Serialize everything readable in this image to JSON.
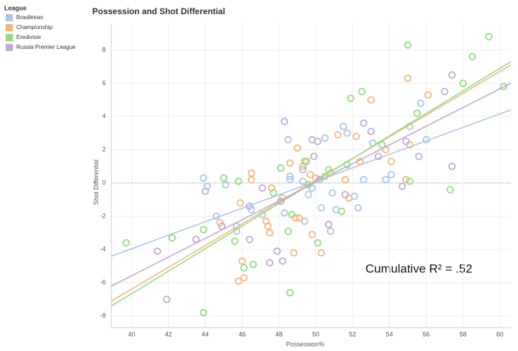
{
  "chart_data": {
    "type": "scatter",
    "title": "Possession and Shot Differential",
    "x_label": "Possession%",
    "y_label": "Shot Differential",
    "legend_title": "League",
    "legend_position": "left",
    "annotation": "Cumulative R² = .52",
    "xlim": [
      38.9,
      60.6
    ],
    "ylim": [
      -8.7,
      9.6
    ],
    "xticks": [
      40,
      42,
      44,
      46,
      48,
      50,
      52,
      54,
      56,
      58,
      60
    ],
    "yticks": [
      -8,
      -6,
      -4,
      -2,
      0,
      2,
      4,
      6,
      8
    ],
    "grid": true,
    "zero_line": true,
    "series": [
      {
        "name": "Brasileirao",
        "color": "#a9c6e8",
        "x": [
          43.9,
          44.1,
          45.1,
          44.6,
          45.7,
          45.7,
          46.5,
          47.1,
          48.3,
          48.5,
          48.6,
          49.3,
          49.6,
          49.8,
          50.3,
          50.5,
          50.9,
          51.1,
          51.5,
          51.7,
          52.1,
          52.3,
          52.6,
          53.1,
          53.8,
          54.1,
          55.1,
          55.7,
          56.0,
          50.8,
          49.4,
          48.6
        ],
        "values": [
          0.3,
          -0.2,
          -0.1,
          -2.0,
          -2.6,
          -2.9,
          -1.6,
          -1.9,
          -1.8,
          2.6,
          0.4,
          0.1,
          -0.7,
          -0.3,
          -1.5,
          2.7,
          -0.6,
          -1.6,
          3.4,
          3.0,
          -0.8,
          -1.5,
          0.2,
          2.4,
          0.2,
          0.5,
          3.4,
          4.8,
          2.6,
          -2.9,
          -2.3,
          0.2
        ],
        "trend": {
          "x": [
            38.9,
            60.6
          ],
          "y": [
            -4.4,
            4.4
          ]
        }
      },
      {
        "name": "Championship",
        "color": "#f7b679",
        "x": [
          44.8,
          45.9,
          46.0,
          46.1,
          45.8,
          46.5,
          46.5,
          47.3,
          47.5,
          47.4,
          47.6,
          48.2,
          48.6,
          48.8,
          49.0,
          49.1,
          48.9,
          49.5,
          49.7,
          49.8,
          50.0,
          50.3,
          50.8,
          50.7,
          51.2,
          51.6,
          52.2,
          53.0,
          53.8,
          54.1,
          55.0,
          54.9,
          55.1,
          56.1,
          52.4,
          49.3,
          51.8
        ],
        "values": [
          -2.4,
          -1.2,
          -4.7,
          -5.7,
          -5.9,
          0.6,
          0.2,
          -2.3,
          -3.0,
          -2.6,
          -0.3,
          -0.9,
          1.2,
          -4.2,
          2.1,
          -2.1,
          -2.1,
          1.3,
          0.5,
          -3.1,
          0.3,
          -4.2,
          0.6,
          -2.5,
          2.9,
          0.2,
          2.8,
          5.0,
          2.0,
          1.3,
          6.3,
          0.2,
          2.3,
          5.3,
          1.3,
          1.0,
          -0.9
        ],
        "trend": {
          "x": [
            38.9,
            60.6
          ],
          "y": [
            -7.1,
            7.1
          ]
        }
      },
      {
        "name": "Eredivisie",
        "color": "#8fdc7f",
        "x": [
          39.7,
          42.2,
          43.9,
          43.9,
          45.0,
          45.6,
          45.8,
          46.1,
          46.6,
          47.7,
          48.1,
          48.5,
          48.7,
          48.6,
          49.6,
          49.4,
          50.1,
          50.5,
          51.4,
          51.7,
          51.9,
          52.5,
          53.6,
          55.0,
          55.5,
          57.3,
          58.0,
          58.5,
          59.4,
          60.2,
          55.1,
          50.7
        ],
        "values": [
          -3.6,
          -3.3,
          -2.8,
          -7.8,
          0.3,
          -3.5,
          0.1,
          -5.1,
          -4.9,
          -0.6,
          0.9,
          -2.9,
          -1.9,
          -6.6,
          -0.1,
          1.3,
          -3.6,
          0.4,
          -1.7,
          1.1,
          5.1,
          5.5,
          2.3,
          8.3,
          4.2,
          -0.4,
          6.0,
          7.6,
          8.8,
          5.8,
          0.1,
          0.8
        ],
        "trend": {
          "x": [
            38.9,
            60.6
          ],
          "y": [
            -7.4,
            7.3
          ]
        }
      },
      {
        "name": "Russia Premier League",
        "color": "#bfa9d6",
        "x": [
          41.4,
          41.9,
          43.5,
          44.0,
          44.9,
          46.4,
          46.4,
          47.1,
          47.5,
          47.9,
          48.2,
          48.3,
          49.3,
          49.8,
          49.9,
          50.1,
          50.7,
          51.6,
          52.6,
          53.0,
          53.4,
          54.7,
          54.9,
          55.6,
          57.0,
          57.4,
          57.4,
          50.2,
          48.1
        ],
        "values": [
          -4.1,
          -7.0,
          -3.4,
          -0.5,
          -2.6,
          -1.4,
          -3.4,
          -0.3,
          -4.8,
          -4.1,
          -4.7,
          3.7,
          0.8,
          2.6,
          1.6,
          2.5,
          -2.5,
          -0.7,
          3.6,
          3.1,
          1.6,
          -0.2,
          2.5,
          1.6,
          5.5,
          6.5,
          1.0,
          0.2,
          -1.1
        ],
        "trend": {
          "x": [
            38.9,
            60.6
          ],
          "y": [
            -6.2,
            6.0
          ]
        }
      }
    ]
  }
}
